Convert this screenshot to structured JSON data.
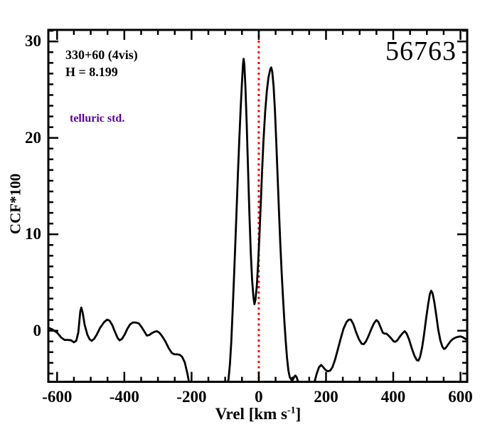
{
  "figure": {
    "annotations": {
      "field_label": "330+60 (4vis)",
      "magnitude_label": "H = 8.199",
      "type_label": "telluric std.",
      "type_label_color": "#5a0099",
      "star_id": "56763"
    },
    "colors": {
      "background": "#ffffff",
      "frame": "#000000",
      "curve": "#000000",
      "zero_line": "#ff0000"
    }
  },
  "chart_data": {
    "type": "line",
    "title": "",
    "ylabel": "CCF*100",
    "xlabel_parts": {
      "main": "Vrel [km s",
      "sup": "-1",
      "end": "]"
    },
    "xlim": [
      -626,
      620
    ],
    "ylim": [
      -5.3,
      31.2
    ],
    "x_major_ticks": [
      -600,
      -400,
      -200,
      0,
      200,
      400,
      600
    ],
    "x_tick_labels": [
      "-600",
      "-400",
      "-200",
      "0",
      "200",
      "400",
      "600"
    ],
    "x_minor_step": 50,
    "y_major_ticks": [
      0,
      10,
      20,
      30
    ],
    "y_tick_labels": [
      "0",
      "10",
      "20",
      "30"
    ],
    "y_minor_divisions": 9,
    "grid": false,
    "legend": false,
    "zero_line_x": 0,
    "series": [
      {
        "name": "CCF",
        "color": "#000000",
        "points": [
          [
            -626,
            0.3
          ],
          [
            -615,
            0.15
          ],
          [
            -600,
            -0.2
          ],
          [
            -588,
            -0.7
          ],
          [
            -578,
            -0.95
          ],
          [
            -568,
            -0.95
          ],
          [
            -558,
            -1.0
          ],
          [
            -550,
            -1.2
          ],
          [
            -543,
            -1.05
          ],
          [
            -537,
            -0.2
          ],
          [
            -531,
            2.0
          ],
          [
            -528,
            2.4
          ],
          [
            -524,
            1.9
          ],
          [
            -518,
            0.6
          ],
          [
            -510,
            -0.4
          ],
          [
            -503,
            -0.9
          ],
          [
            -497,
            -1.05
          ],
          [
            -490,
            -0.85
          ],
          [
            -482,
            -0.4
          ],
          [
            -472,
            0.3
          ],
          [
            -460,
            0.9
          ],
          [
            -451,
            1.15
          ],
          [
            -444,
            1.05
          ],
          [
            -436,
            0.6
          ],
          [
            -428,
            -0.1
          ],
          [
            -420,
            -0.75
          ],
          [
            -414,
            -1.0
          ],
          [
            -407,
            -0.85
          ],
          [
            -399,
            -0.4
          ],
          [
            -391,
            0.2
          ],
          [
            -383,
            0.65
          ],
          [
            -375,
            0.85
          ],
          [
            -366,
            0.85
          ],
          [
            -357,
            0.75
          ],
          [
            -349,
            0.4
          ],
          [
            -340,
            -0.1
          ],
          [
            -333,
            -0.5
          ],
          [
            -326,
            -0.45
          ],
          [
            -318,
            -0.25
          ],
          [
            -310,
            -0.1
          ],
          [
            -303,
            -0.05
          ],
          [
            -296,
            -0.2
          ],
          [
            -288,
            -0.55
          ],
          [
            -278,
            -1.1
          ],
          [
            -268,
            -1.8
          ],
          [
            -259,
            -2.3
          ],
          [
            -251,
            -2.45
          ],
          [
            -243,
            -2.45
          ],
          [
            -235,
            -2.5
          ],
          [
            -228,
            -2.7
          ],
          [
            -220,
            -3.3
          ],
          [
            -212,
            -4.5
          ],
          [
            -206,
            -5.6
          ],
          [
            -200,
            -7.0
          ],
          [
            -150,
            -8.0
          ],
          [
            -100,
            -7.0
          ],
          [
            -94,
            -5.8
          ],
          [
            -90,
            -5.0
          ],
          [
            -86,
            -3.5
          ],
          [
            -82,
            -1.2
          ],
          [
            -78,
            1.8
          ],
          [
            -74,
            5.2
          ],
          [
            -70,
            8.8
          ],
          [
            -66,
            12.5
          ],
          [
            -62,
            16.3
          ],
          [
            -58,
            19.8
          ],
          [
            -54,
            23.0
          ],
          [
            -50,
            25.8
          ],
          [
            -47,
            27.6
          ],
          [
            -45,
            28.2
          ],
          [
            -43,
            27.6
          ],
          [
            -40,
            25.5
          ],
          [
            -36,
            21.5
          ],
          [
            -32,
            16.8
          ],
          [
            -28,
            12.2
          ],
          [
            -24,
            8.2
          ],
          [
            -20,
            5.3
          ],
          [
            -16,
            3.5
          ],
          [
            -13,
            2.75
          ],
          [
            -10,
            3.2
          ],
          [
            -6,
            4.6
          ],
          [
            -2,
            7.0
          ],
          [
            2,
            10.0
          ],
          [
            6,
            13.3
          ],
          [
            10,
            16.6
          ],
          [
            14,
            19.7
          ],
          [
            19,
            22.7
          ],
          [
            24,
            24.9
          ],
          [
            29,
            26.3
          ],
          [
            34,
            27.1
          ],
          [
            37,
            27.3
          ],
          [
            40,
            26.9
          ],
          [
            44,
            25.4
          ],
          [
            48,
            22.9
          ],
          [
            52,
            19.6
          ],
          [
            56,
            16.0
          ],
          [
            60,
            12.4
          ],
          [
            64,
            9.0
          ],
          [
            68,
            6.0
          ],
          [
            72,
            3.4
          ],
          [
            76,
            1.1
          ],
          [
            80,
            -1.0
          ],
          [
            84,
            -2.8
          ],
          [
            88,
            -4.1
          ],
          [
            92,
            -4.8
          ],
          [
            97,
            -5.1
          ],
          [
            102,
            -5.05
          ],
          [
            106,
            -4.75
          ],
          [
            109,
            -4.65
          ],
          [
            113,
            -4.85
          ],
          [
            117,
            -5.3
          ],
          [
            121,
            -5.8
          ],
          [
            130,
            -6.5
          ],
          [
            150,
            -6.5
          ],
          [
            160,
            -5.9
          ],
          [
            166,
            -5.3
          ],
          [
            172,
            -4.5
          ],
          [
            179,
            -3.8
          ],
          [
            185,
            -3.55
          ],
          [
            191,
            -3.75
          ],
          [
            198,
            -4.05
          ],
          [
            205,
            -4.2
          ],
          [
            212,
            -4.15
          ],
          [
            219,
            -3.8
          ],
          [
            226,
            -3.1
          ],
          [
            234,
            -2.1
          ],
          [
            243,
            -0.9
          ],
          [
            252,
            0.2
          ],
          [
            261,
            0.9
          ],
          [
            268,
            1.15
          ],
          [
            274,
            1.15
          ],
          [
            281,
            0.7
          ],
          [
            289,
            -0.1
          ],
          [
            298,
            -0.9
          ],
          [
            306,
            -1.35
          ],
          [
            312,
            -1.4
          ],
          [
            319,
            -1.1
          ],
          [
            327,
            -0.5
          ],
          [
            335,
            0.2
          ],
          [
            343,
            0.8
          ],
          [
            350,
            1.1
          ],
          [
            356,
            0.9
          ],
          [
            363,
            0.3
          ],
          [
            369,
            -0.2
          ],
          [
            374,
            -0.3
          ],
          [
            380,
            -0.3
          ],
          [
            386,
            -0.5
          ],
          [
            394,
            -0.8
          ],
          [
            401,
            -1.1
          ],
          [
            406,
            -1.15
          ],
          [
            412,
            -1.0
          ],
          [
            420,
            -0.6
          ],
          [
            428,
            -0.25
          ],
          [
            434,
            -0.05
          ],
          [
            440,
            -0.3
          ],
          [
            447,
            -0.9
          ],
          [
            455,
            -1.8
          ],
          [
            463,
            -2.6
          ],
          [
            470,
            -3.05
          ],
          [
            475,
            -3.1
          ],
          [
            480,
            -2.7
          ],
          [
            486,
            -1.7
          ],
          [
            492,
            -0.3
          ],
          [
            498,
            1.3
          ],
          [
            504,
            2.8
          ],
          [
            509,
            3.8
          ],
          [
            513,
            4.15
          ],
          [
            517,
            3.9
          ],
          [
            522,
            3.0
          ],
          [
            528,
            1.6
          ],
          [
            534,
            0.1
          ],
          [
            540,
            -1.0
          ],
          [
            546,
            -1.65
          ],
          [
            551,
            -1.9
          ],
          [
            556,
            -1.8
          ],
          [
            562,
            -1.5
          ],
          [
            570,
            -1.1
          ],
          [
            578,
            -0.85
          ],
          [
            586,
            -0.7
          ],
          [
            594,
            -0.62
          ],
          [
            601,
            -0.6
          ],
          [
            607,
            -0.68
          ],
          [
            613,
            -0.82
          ],
          [
            619,
            -0.9
          ]
        ]
      }
    ]
  }
}
